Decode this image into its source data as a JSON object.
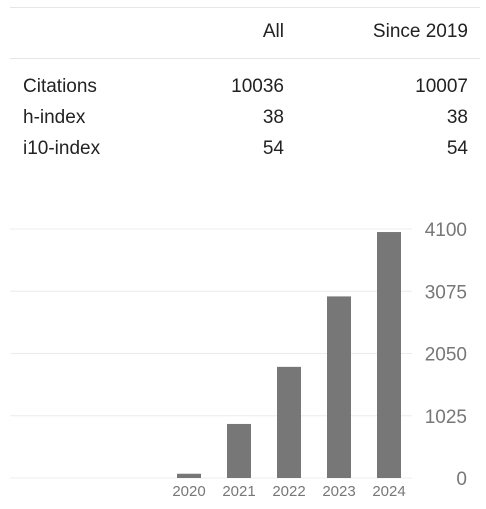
{
  "table": {
    "columns": [
      "",
      "All",
      "Since 2019"
    ],
    "rows": [
      {
        "label": "Citations",
        "all": "10036",
        "since": "10007"
      },
      {
        "label": "h-index",
        "all": "38",
        "since": "38"
      },
      {
        "label": "i10-index",
        "all": "54",
        "since": "54"
      }
    ]
  },
  "chart_data": {
    "type": "bar",
    "categories": [
      "2020",
      "2021",
      "2022",
      "2023",
      "2024"
    ],
    "values": [
      70,
      890,
      1830,
      2990,
      4050
    ],
    "yticks": [
      "0",
      "1025",
      "2050",
      "3075",
      "4100"
    ],
    "ylim": [
      0,
      4100
    ],
    "grid": true,
    "bar_color": "#777777"
  }
}
